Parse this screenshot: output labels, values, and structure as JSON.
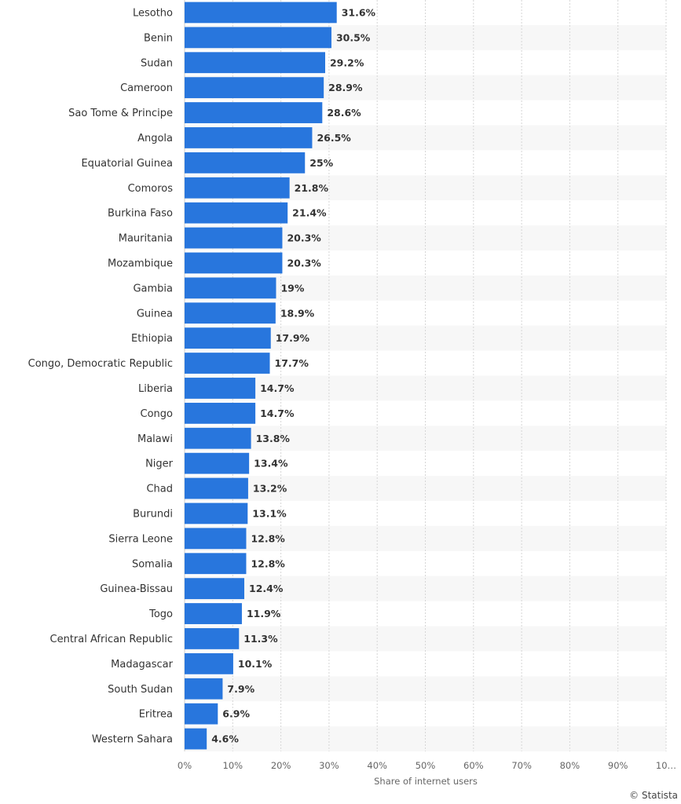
{
  "chart_data": {
    "type": "bar",
    "orientation": "horizontal",
    "categories": [
      "Lesotho",
      "Benin",
      "Sudan",
      "Cameroon",
      "Sao Tome & Principe",
      "Angola",
      "Equatorial Guinea",
      "Comoros",
      "Burkina Faso",
      "Mauritania",
      "Mozambique",
      "Gambia",
      "Guinea",
      "Ethiopia",
      "Congo, Democratic Republic",
      "Liberia",
      "Congo",
      "Malawi",
      "Niger",
      "Chad",
      "Burundi",
      "Sierra Leone",
      "Somalia",
      "Guinea-Bissau",
      "Togo",
      "Central African Republic",
      "Madagascar",
      "South Sudan",
      "Eritrea",
      "Western Sahara"
    ],
    "values": [
      31.6,
      30.5,
      29.2,
      28.9,
      28.6,
      26.5,
      25,
      21.8,
      21.4,
      20.3,
      20.3,
      19,
      18.9,
      17.9,
      17.7,
      14.7,
      14.7,
      13.8,
      13.4,
      13.2,
      13.1,
      12.8,
      12.8,
      12.4,
      11.9,
      11.3,
      10.1,
      7.9,
      6.9,
      4.6
    ],
    "value_labels": [
      "31.6%",
      "30.5%",
      "29.2%",
      "28.9%",
      "28.6%",
      "26.5%",
      "25%",
      "21.8%",
      "21.4%",
      "20.3%",
      "20.3%",
      "19%",
      "18.9%",
      "17.9%",
      "17.7%",
      "14.7%",
      "14.7%",
      "13.8%",
      "13.4%",
      "13.2%",
      "13.1%",
      "12.8%",
      "12.8%",
      "12.4%",
      "11.9%",
      "11.3%",
      "10.1%",
      "7.9%",
      "6.9%",
      "4.6%"
    ],
    "x_ticks": [
      "0%",
      "10%",
      "20%",
      "30%",
      "40%",
      "50%",
      "60%",
      "70%",
      "80%",
      "90%",
      "10…"
    ],
    "xlabel": "Share of internet users",
    "xlim": [
      0,
      100
    ],
    "grid": true,
    "bar_color": "#2876dd"
  },
  "credit": "© Statista"
}
